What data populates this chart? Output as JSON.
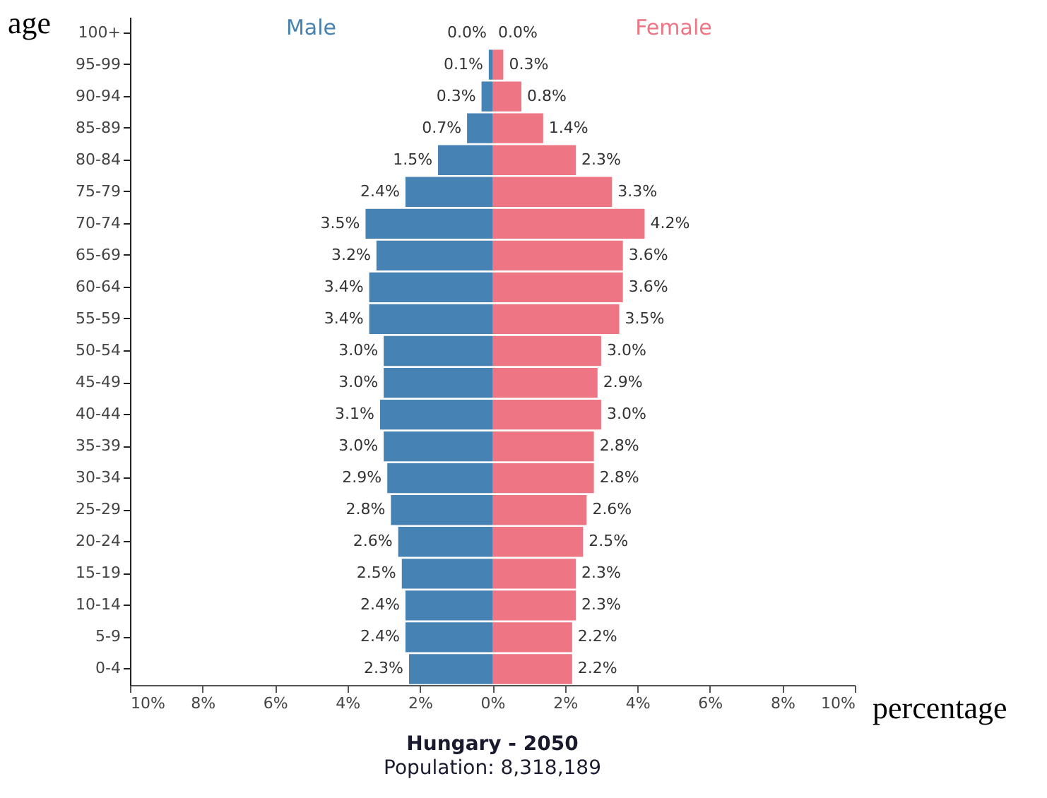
{
  "chart_data": {
    "type": "bar",
    "orientation": "horizontal",
    "title": "Hungary - 2050",
    "subtitle": "Population: 8,318,189",
    "xlabel": "percentage",
    "ylabel": "age",
    "categories": [
      "100+",
      "95-99",
      "90-94",
      "85-89",
      "80-84",
      "75-79",
      "70-74",
      "65-69",
      "60-64",
      "55-59",
      "50-54",
      "45-49",
      "40-44",
      "35-39",
      "30-34",
      "25-29",
      "20-24",
      "15-19",
      "10-14",
      "5-9",
      "0-4"
    ],
    "series": [
      {
        "name": "Male",
        "color": "#4682b4",
        "values": [
          0.0,
          0.1,
          0.3,
          0.7,
          1.5,
          2.4,
          3.5,
          3.2,
          3.4,
          3.4,
          3.0,
          3.0,
          3.1,
          3.0,
          2.9,
          2.8,
          2.6,
          2.5,
          2.4,
          2.4,
          2.3
        ],
        "base": [
          null,
          -0.1,
          -0.3,
          -0.7,
          -1.5,
          -2.4,
          -3.5,
          -3.2,
          -3.4,
          -3.4,
          -3.0,
          -3.0,
          -3.1,
          -3.0,
          -2.9,
          -2.8,
          -2.6,
          -2.5,
          -2.4,
          -2.4,
          -2.3
        ],
        "value_labels": [
          "0.0%",
          "0.1%",
          "0.3%",
          "0.7%",
          "1.5%",
          "2.4%",
          "3.5%",
          "3.2%",
          "3.4%",
          "3.4%",
          "3.0%",
          "3.0%",
          "3.1%",
          "3.0%",
          "2.9%",
          "2.8%",
          "2.6%",
          "2.5%",
          "2.4%",
          "2.4%",
          "2.3%"
        ]
      },
      {
        "name": "Female",
        "color": "#ee7583",
        "values": [
          0.0,
          0.3,
          0.8,
          1.4,
          2.3,
          3.3,
          4.2,
          3.6,
          3.6,
          3.5,
          3.0,
          2.9,
          3.0,
          2.8,
          2.8,
          2.6,
          2.5,
          2.3,
          2.3,
          2.2,
          2.2
        ],
        "value_labels": [
          "0.0%",
          "0.3%",
          "0.8%",
          "1.4%",
          "2.3%",
          "3.3%",
          "4.2%",
          "3.6%",
          "3.6%",
          "3.5%",
          "3.0%",
          "2.9%",
          "3.0%",
          "2.8%",
          "2.8%",
          "2.6%",
          "2.5%",
          "2.3%",
          "2.3%",
          "2.2%",
          "2.2%"
        ]
      }
    ],
    "xlim": [
      -10,
      10
    ],
    "xticks": [
      {
        "value": -10,
        "label": "10%"
      },
      {
        "value": -8,
        "label": "8%"
      },
      {
        "value": -6,
        "label": "6%"
      },
      {
        "value": -4,
        "label": "4%"
      },
      {
        "value": -2,
        "label": "2%"
      },
      {
        "value": 0,
        "label": "0%"
      },
      {
        "value": 2,
        "label": "2%"
      },
      {
        "value": 4,
        "label": "4%"
      },
      {
        "value": 6,
        "label": "6%"
      },
      {
        "value": 8,
        "label": "8%"
      },
      {
        "value": 10,
        "label": "10%"
      }
    ]
  }
}
